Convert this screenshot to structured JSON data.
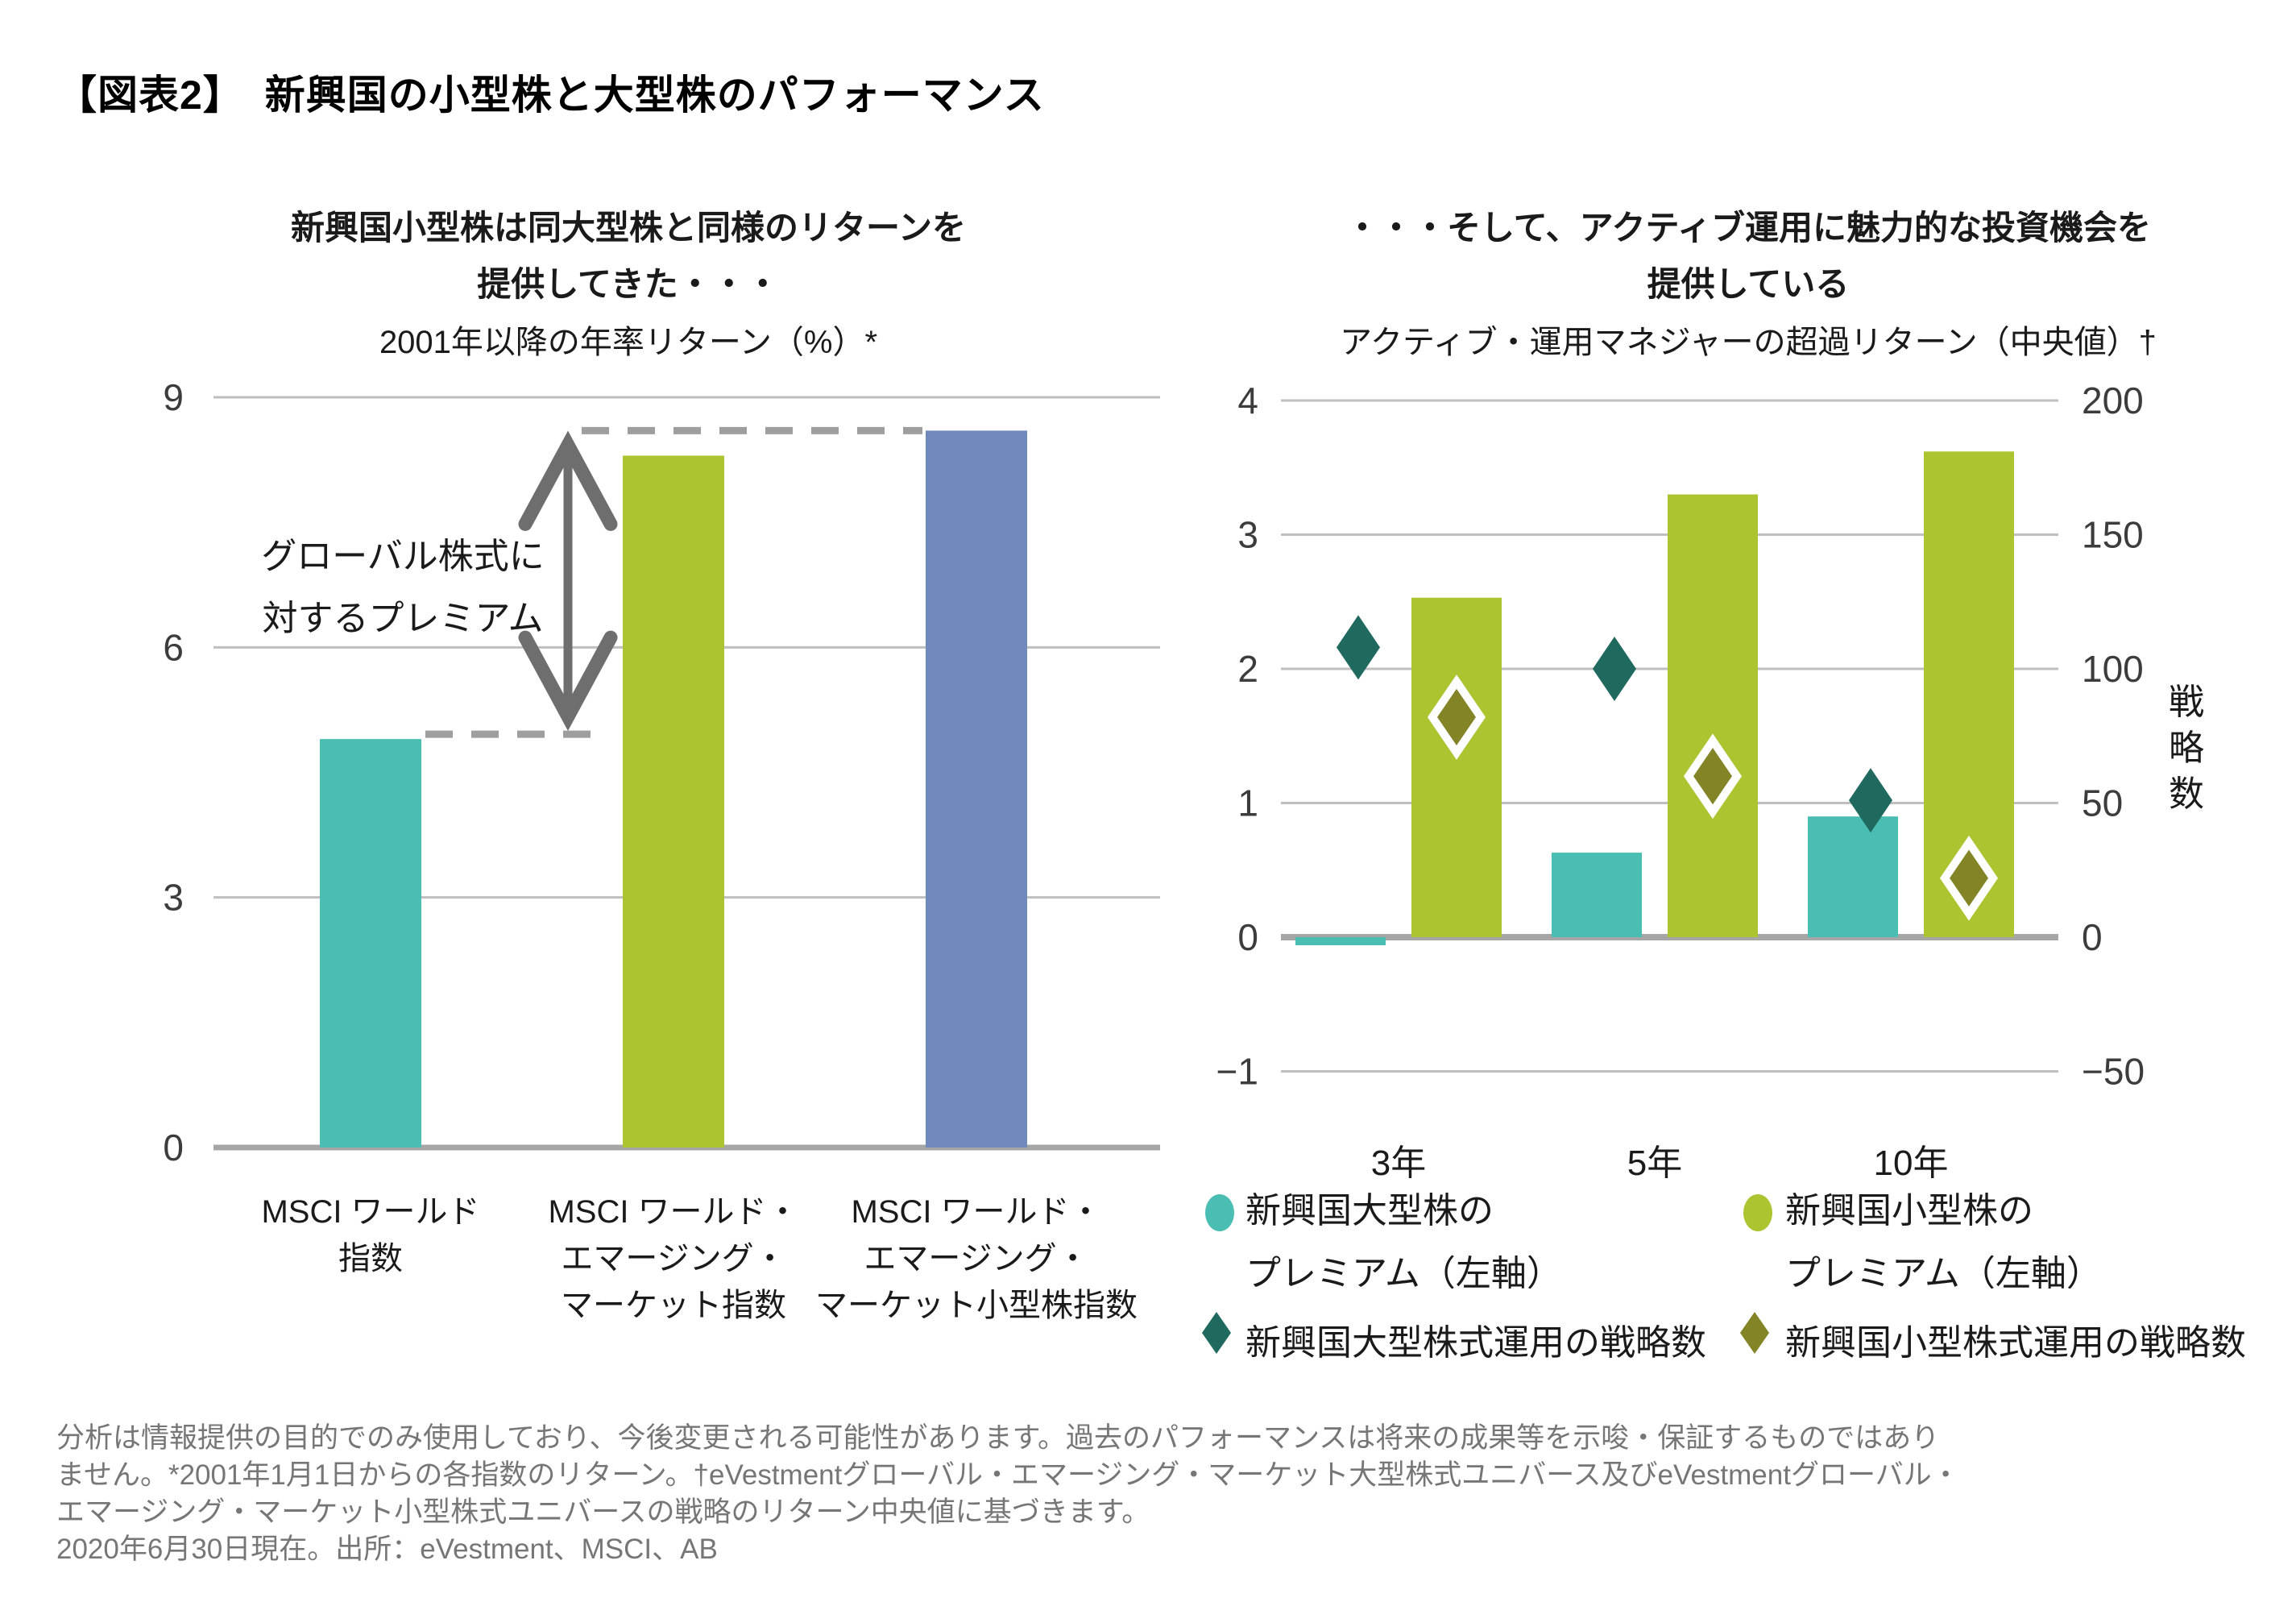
{
  "page": {
    "title": "【図表2】　新興国の小型株と大型株のパフォーマンス"
  },
  "chart_data": [
    {
      "type": "bar",
      "title": "新興国小型株は同大型株と同様のリターンを提供してきた・・・",
      "title_lines": [
        "新興国小型株は同大型株と同様のリターンを",
        "提供してきた・・・"
      ],
      "subtitle": "2001年以降の年率リターン（%）*",
      "categories_lines": [
        [
          "MSCI ワールド",
          "指数"
        ],
        [
          "MSCI ワールド・",
          "エマージング・",
          "マーケット指数"
        ],
        [
          "MSCI ワールド・",
          "エマージング・",
          "マーケット小型株指数"
        ]
      ],
      "categories": [
        "MSCI ワールド指数",
        "MSCI ワールド・エマージング・マーケット指数",
        "MSCI ワールド・エマージング・マーケット小型株指数"
      ],
      "values": [
        4.9,
        8.3,
        8.6
      ],
      "bar_colors": [
        "#4BBEB3",
        "#ACC42F",
        "#7088BB"
      ],
      "ylim": [
        0,
        9
      ],
      "yticks": [
        0,
        3,
        6,
        9
      ],
      "grid": true,
      "annotation": {
        "lines": [
          "グローバル株式に",
          "対するプレミアム"
        ],
        "arrow": "double-headed vertical arrow between MSCI ワールド指数 bar top (4.9) and dashed line at small-cap level (8.6)"
      }
    },
    {
      "type": "bar",
      "title": "・・・そして、アクティブ運用に魅力的な投資機会を提供している",
      "title_lines": [
        "・・・そして、アクティブ運用に魅力的な投資機会を",
        "提供している"
      ],
      "subtitle": "アクティブ・運用マネジャーの超過リターン（中央値）†",
      "categories": [
        "3年",
        "5年",
        "10年"
      ],
      "series": [
        {
          "name": "新興国大型株のプレミアム（左軸）",
          "legend_lines": [
            "新興国大型株の",
            "プレミアム（左軸）"
          ],
          "type": "bar",
          "axis": "left",
          "color": "#4BBEB3",
          "values": [
            -0.06,
            0.63,
            0.9
          ]
        },
        {
          "name": "新興国小型株のプレミアム（左軸）",
          "legend_lines": [
            "新興国小型株の",
            "プレミアム（左軸）"
          ],
          "type": "bar",
          "axis": "left",
          "color": "#ACC42F",
          "values": [
            2.53,
            3.3,
            3.62
          ]
        },
        {
          "name": "新興国大型株式運用の戦略数",
          "legend_lines": [
            "新興国大型株式運用の戦略数"
          ],
          "type": "diamond",
          "axis": "right",
          "color": "#20695F",
          "values": [
            108,
            100,
            51
          ]
        },
        {
          "name": "新興国小型株式運用の戦略数",
          "legend_lines": [
            "新興国小型株式運用の戦略数"
          ],
          "type": "diamond",
          "axis": "right",
          "color": "#828426",
          "outline": "#FFFFFF",
          "values": [
            82,
            60,
            22
          ]
        }
      ],
      "left_ylim": [
        -1,
        4
      ],
      "left_yticks": [
        4,
        3,
        2,
        1,
        0,
        -1
      ],
      "left_ytick_labels": [
        "4",
        "3",
        "2",
        "1",
        "0",
        "−1"
      ],
      "right_ylim": [
        -50,
        200
      ],
      "right_ytick_labels": [
        "200",
        "150",
        "100",
        "50",
        "0",
        "−50"
      ],
      "right_axis_label": "戦略数",
      "grid": true,
      "legend_position": "bottom"
    }
  ],
  "colors": {
    "teal": "#4BBEB3",
    "lime": "#ACC42F",
    "blue": "#7088BB",
    "dark_teal": "#20695F",
    "olive": "#828426",
    "gridline": "#BFBFBF",
    "axis_line": "#A6A6A6",
    "arrow_gray": "#6E6E6E",
    "dash_gray": "#9E9E9E",
    "tick_text": "#3C3C3C",
    "footnote_text": "#767676"
  },
  "footnote": {
    "lines": [
      "分析は情報提供の目的でのみ使用しており、今後変更される可能性があります。過去のパフォーマンスは将来の成果等を示唆・保証するものではあり",
      "ません。*2001年1月1日からの各指数のリターン。†eVestmentグローバル・エマージング・マーケット大型株式ユニバース及びeVestmentグローバル・",
      "エマージング・マーケット小型株式ユニバースの戦略のリターン中央値に基づきます。",
      "2020年6月30日現在。出所：eVestment、MSCI、AB"
    ]
  }
}
